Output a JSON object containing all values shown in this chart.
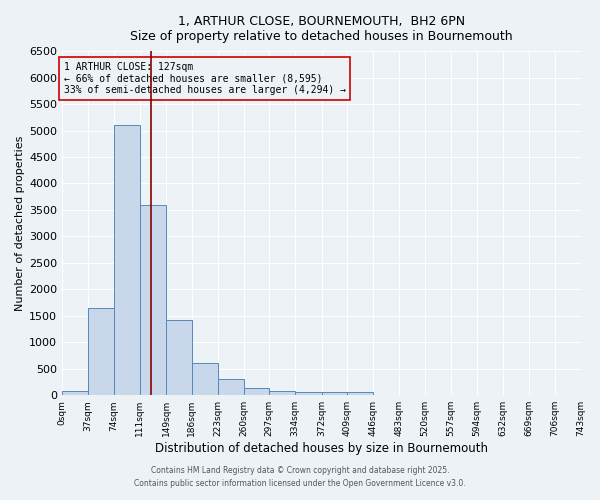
{
  "title": "1, ARTHUR CLOSE, BOURNEMOUTH,  BH2 6PN",
  "subtitle": "Size of property relative to detached houses in Bournemouth",
  "xlabel": "Distribution of detached houses by size in Bournemouth",
  "ylabel": "Number of detached properties",
  "bar_color": "#c8d8ea",
  "bar_edge_color": "#5588bb",
  "vline_x": 127,
  "vline_color": "#8b0000",
  "annotation_lines": [
    "1 ARTHUR CLOSE: 127sqm",
    "← 66% of detached houses are smaller (8,595)",
    "33% of semi-detached houses are larger (4,294) →"
  ],
  "annotation_box_color": "#cc0000",
  "bin_edges": [
    0,
    37,
    74,
    111,
    149,
    186,
    223,
    260,
    297,
    334,
    372,
    409,
    446,
    483,
    520,
    557,
    594,
    632,
    669,
    706,
    743
  ],
  "bar_heights": [
    75,
    1650,
    5100,
    3600,
    1425,
    600,
    300,
    140,
    80,
    55,
    55,
    55,
    0,
    0,
    0,
    0,
    0,
    0,
    0,
    0
  ],
  "ylim": [
    0,
    6500
  ],
  "yticks": [
    0,
    500,
    1000,
    1500,
    2000,
    2500,
    3000,
    3500,
    4000,
    4500,
    5000,
    5500,
    6000,
    6500
  ],
  "xtick_labels": [
    "0sqm",
    "37sqm",
    "74sqm",
    "111sqm",
    "149sqm",
    "186sqm",
    "223sqm",
    "260sqm",
    "297sqm",
    "334sqm",
    "372sqm",
    "409sqm",
    "446sqm",
    "483sqm",
    "520sqm",
    "557sqm",
    "594sqm",
    "632sqm",
    "669sqm",
    "706sqm",
    "743sqm"
  ],
  "bg_color": "#edf2f7",
  "footer_line1": "Contains HM Land Registry data © Crown copyright and database right 2025.",
  "footer_line2": "Contains public sector information licensed under the Open Government Licence v3.0."
}
